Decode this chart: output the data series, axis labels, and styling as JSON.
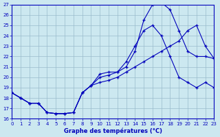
{
  "title": "Graphe des températures (°C)",
  "bg_color": "#cce8f0",
  "grid_color": "#99bbcc",
  "line_color": "#0000bb",
  "xlim": [
    0,
    23
  ],
  "ylim": [
    16,
    27
  ],
  "xticks": [
    0,
    1,
    2,
    3,
    4,
    5,
    6,
    7,
    8,
    9,
    10,
    11,
    12,
    13,
    14,
    15,
    16,
    17,
    18,
    19,
    20,
    21,
    22,
    23
  ],
  "yticks": [
    16,
    17,
    18,
    19,
    20,
    21,
    22,
    23,
    24,
    25,
    26,
    27
  ],
  "curve1_x": [
    0,
    1,
    2,
    3,
    4,
    5,
    6,
    7,
    8,
    9,
    10,
    11,
    12,
    13,
    14,
    15,
    16,
    17,
    18,
    19,
    20,
    21,
    22,
    23
  ],
  "curve1_y": [
    18.5,
    18.0,
    17.5,
    17.5,
    16.6,
    16.5,
    16.5,
    16.6,
    18.5,
    19.2,
    20.3,
    20.5,
    20.5,
    21.0,
    22.5,
    25.5,
    27.0,
    27.2,
    26.5,
    24.5,
    22.5,
    22.0,
    22.0,
    21.8
  ],
  "curve2_x": [
    0,
    1,
    2,
    3,
    4,
    5,
    6,
    7,
    8,
    9,
    10,
    11,
    12,
    13,
    14,
    15,
    16,
    17,
    18,
    19,
    20,
    21,
    22,
    23
  ],
  "curve2_y": [
    18.5,
    18.0,
    17.5,
    17.5,
    16.6,
    16.5,
    16.5,
    16.6,
    18.5,
    19.2,
    20.0,
    20.2,
    20.5,
    21.5,
    23.0,
    24.5,
    25.0,
    24.0,
    22.0,
    20.0,
    19.5,
    19.0,
    19.5,
    19.0
  ],
  "curve3_x": [
    0,
    1,
    2,
    3,
    4,
    5,
    6,
    7,
    8,
    9,
    10,
    11,
    12,
    13,
    14,
    15,
    16,
    17,
    18,
    19,
    20,
    21,
    22,
    23
  ],
  "curve3_y": [
    18.5,
    18.0,
    17.5,
    17.5,
    16.6,
    16.5,
    16.5,
    16.6,
    18.5,
    19.2,
    19.5,
    19.7,
    20.0,
    20.5,
    21.0,
    21.5,
    22.0,
    22.5,
    23.0,
    23.5,
    24.5,
    25.0,
    23.0,
    21.8
  ]
}
